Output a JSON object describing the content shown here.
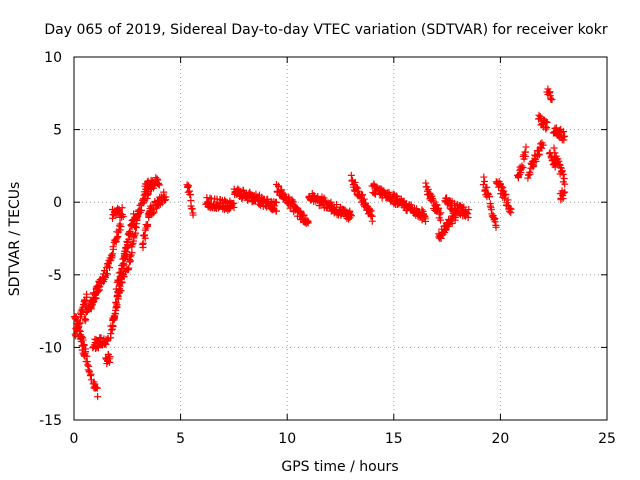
{
  "chart_data": {
    "type": "scatter",
    "title": "Day 065 of 2019, Sidereal Day-to-day VTEC variation (SDTVAR) for receiver kokr",
    "xlabel": "GPS time / hours",
    "ylabel": "SDTVAR / TECUs",
    "xlim": [
      0,
      25
    ],
    "ylim": [
      -15,
      10
    ],
    "xticks": [
      "0",
      "5",
      "10",
      "15",
      "20",
      "25"
    ],
    "yticks": [
      "-15",
      "-10",
      "-5",
      "0",
      "5",
      "10"
    ],
    "grid": true,
    "marker": "+",
    "color": "#ff0000",
    "series": [
      {
        "name": "SDTVAR",
        "description": "approximate envelope of the plotted scatter segments",
        "segments": [
          {
            "x0": 0.0,
            "x1": 0.5,
            "y0": -7.5,
            "y1": -10.5
          },
          {
            "x0": 0.05,
            "x1": 0.6,
            "y0": -9.0,
            "y1": -6.5
          },
          {
            "x0": 0.3,
            "x1": 0.8,
            "y0": -9.0,
            "y1": -12.0
          },
          {
            "x0": 0.5,
            "x1": 1.2,
            "y0": -8.0,
            "y1": -5.5
          },
          {
            "x0": 0.8,
            "x1": 1.6,
            "y0": -7.0,
            "y1": -4.5
          },
          {
            "x0": 0.9,
            "x1": 1.1,
            "y0": -12.5,
            "y1": -13.1
          },
          {
            "x0": 0.9,
            "x1": 1.6,
            "y0": -9.8,
            "y1": -9.5
          },
          {
            "x0": 1.5,
            "x1": 1.7,
            "y0": -11.0,
            "y1": -10.7
          },
          {
            "x0": 1.6,
            "x1": 2.2,
            "y0": -4.5,
            "y1": -1.5
          },
          {
            "x0": 1.7,
            "x1": 2.4,
            "y0": -9.0,
            "y1": -4.5
          },
          {
            "x0": 1.8,
            "x1": 2.6,
            "y0": -8.5,
            "y1": -2.0
          },
          {
            "x0": 2.0,
            "x1": 2.8,
            "y0": -6.0,
            "y1": -1.0
          },
          {
            "x0": 2.5,
            "x1": 3.0,
            "y0": -5.0,
            "y1": -0.8
          },
          {
            "x0": 1.8,
            "x1": 2.3,
            "y0": -0.8,
            "y1": -0.7
          },
          {
            "x0": 2.8,
            "x1": 3.5,
            "y0": -1.5,
            "y1": 0.8
          },
          {
            "x0": 3.2,
            "x1": 3.6,
            "y0": -3.0,
            "y1": -0.5
          },
          {
            "x0": 3.3,
            "x1": 4.0,
            "y0": 1.0,
            "y1": 1.5
          },
          {
            "x0": 3.5,
            "x1": 4.3,
            "y0": -0.8,
            "y1": 0.5
          },
          {
            "x0": 5.3,
            "x1": 5.6,
            "y0": 1.5,
            "y1": -0.8
          },
          {
            "x0": 6.2,
            "x1": 7.5,
            "y0": 0.0,
            "y1": -0.3
          },
          {
            "x0": 7.5,
            "x1": 9.5,
            "y0": 0.8,
            "y1": -0.3
          },
          {
            "x0": 9.5,
            "x1": 11.0,
            "y0": 1.0,
            "y1": -1.5
          },
          {
            "x0": 11.0,
            "x1": 13.0,
            "y0": 0.5,
            "y1": -1.0
          },
          {
            "x0": 13.0,
            "x1": 14.0,
            "y0": 1.5,
            "y1": -1.0
          },
          {
            "x0": 14.0,
            "x1": 16.5,
            "y0": 1.0,
            "y1": -1.0
          },
          {
            "x0": 16.5,
            "x1": 17.2,
            "y0": 1.0,
            "y1": -1.0
          },
          {
            "x0": 17.1,
            "x1": 17.9,
            "y0": -2.5,
            "y1": -0.8
          },
          {
            "x0": 17.4,
            "x1": 18.5,
            "y0": 0.0,
            "y1": -0.8
          },
          {
            "x0": 19.2,
            "x1": 19.8,
            "y0": 1.5,
            "y1": -1.5
          },
          {
            "x0": 19.8,
            "x1": 20.5,
            "y0": 1.5,
            "y1": -0.5
          },
          {
            "x0": 20.8,
            "x1": 21.2,
            "y0": 1.5,
            "y1": 3.5
          },
          {
            "x0": 21.3,
            "x1": 22.0,
            "y0": 2.0,
            "y1": 4.0
          },
          {
            "x0": 21.8,
            "x1": 22.2,
            "y0": 5.8,
            "y1": 5.2
          },
          {
            "x0": 22.2,
            "x1": 22.4,
            "y0": 7.5,
            "y1": 7.3
          },
          {
            "x0": 22.3,
            "x1": 22.6,
            "y0": 3.5,
            "y1": 2.5
          },
          {
            "x0": 22.5,
            "x1": 23.0,
            "y0": 5.0,
            "y1": 4.5
          },
          {
            "x0": 22.5,
            "x1": 23.0,
            "y0": 3.5,
            "y1": 1.5
          },
          {
            "x0": 22.8,
            "x1": 23.0,
            "y0": 0.5,
            "y1": 0.4
          }
        ]
      }
    ]
  }
}
